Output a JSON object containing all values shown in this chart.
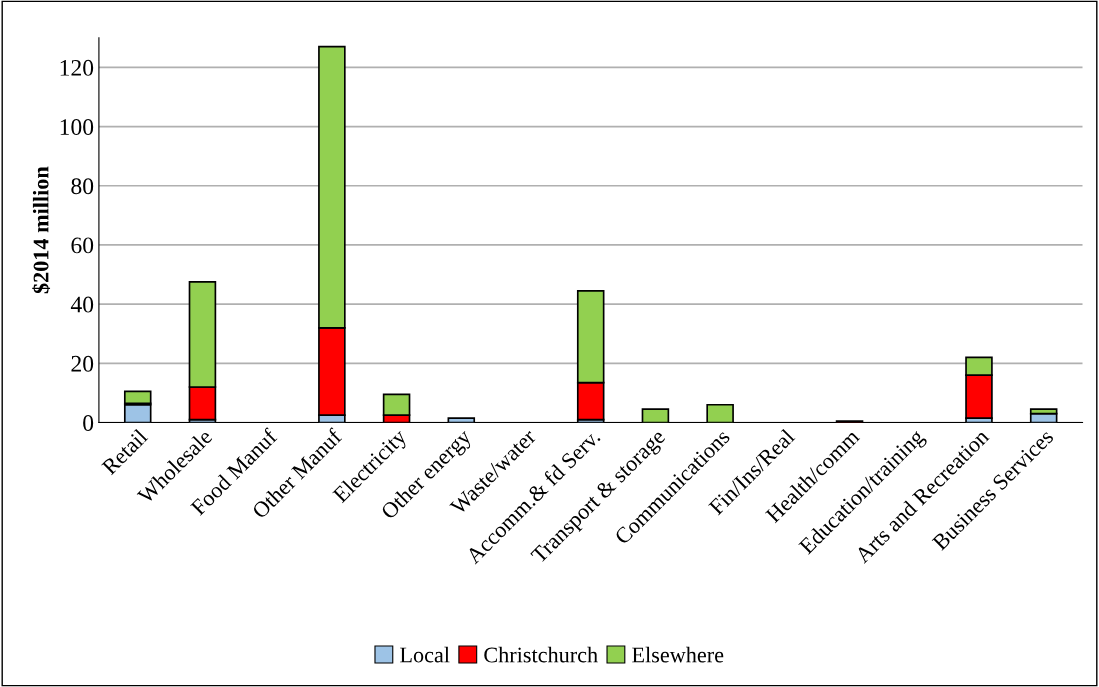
{
  "chart_data": {
    "type": "bar",
    "stacked": true,
    "ylabel": "$2014 million",
    "categories": [
      "Retail",
      "Wholesale",
      "Food Manuf",
      "Other Manuf",
      "Electricity",
      "Other energy",
      "Waste/water",
      "Accomm.& fd Serv.",
      "Transport & storage",
      "Communications",
      "Fin/Ins/Real",
      "Health/comm",
      "Education/training",
      "Arts and Recreation",
      "Business Services"
    ],
    "series": [
      {
        "name": "Local",
        "color": "#9dc3e6",
        "values": [
          6,
          1,
          0,
          2.5,
          0,
          1.5,
          0,
          1,
          0,
          0,
          0,
          0,
          0,
          1.5,
          3
        ]
      },
      {
        "name": "Christchurch",
        "color": "#ff0000",
        "values": [
          0.5,
          11,
          0,
          29.5,
          2.5,
          0,
          0,
          12.5,
          0,
          0,
          0,
          0.5,
          0,
          14.5,
          0
        ]
      },
      {
        "name": "Elsewhere",
        "color": "#92d050",
        "values": [
          4,
          35.5,
          0,
          95,
          7,
          0,
          0,
          31,
          4.5,
          6,
          0,
          0,
          0,
          6,
          1.5
        ]
      }
    ],
    "ylim": [
      0,
      130
    ],
    "yticks": [
      0,
      20,
      40,
      60,
      80,
      100,
      120
    ],
    "grid": "y",
    "legend": "bottom"
  }
}
